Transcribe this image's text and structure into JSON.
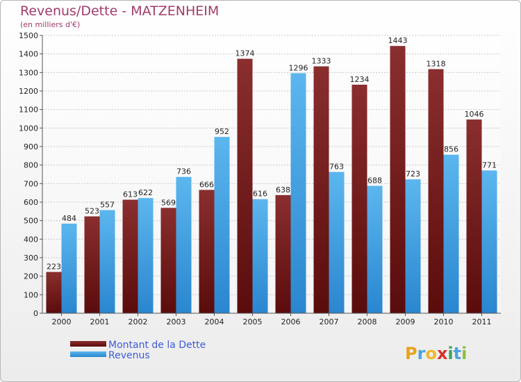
{
  "chart_data": {
    "type": "bar",
    "title": "Revenus/Dette - MATZENHEIM",
    "subtitle": "(en milliers d'€)",
    "categories": [
      "2000",
      "2001",
      "2002",
      "2003",
      "2004",
      "2005",
      "2006",
      "2007",
      "2008",
      "2009",
      "2010",
      "2011"
    ],
    "series": [
      {
        "name": "Montant de la Dette",
        "color": "#7a1c1c",
        "values": [
          223,
          523,
          613,
          569,
          666,
          1374,
          638,
          1333,
          1234,
          1443,
          1318,
          1046
        ]
      },
      {
        "name": "Revenus",
        "color": "#4fa8e6",
        "values": [
          484,
          557,
          622,
          736,
          952,
          616,
          1296,
          763,
          688,
          723,
          856,
          771
        ]
      }
    ],
    "ylim": [
      0,
      1500
    ],
    "yticks": [
      0,
      100,
      200,
      300,
      400,
      500,
      600,
      700,
      800,
      900,
      1000,
      1100,
      1200,
      1300,
      1400,
      1500
    ],
    "grid": true,
    "legend_position": "bottom-left"
  },
  "brand": {
    "logo_letters": [
      {
        "ch": "P",
        "color": "#e8a21c"
      },
      {
        "ch": "r",
        "color": "#4aa3df"
      },
      {
        "ch": "o",
        "color": "#f0b82a"
      },
      {
        "ch": "x",
        "color": "#d9302a"
      },
      {
        "ch": "i",
        "color": "#3aa35a"
      },
      {
        "ch": "t",
        "color": "#4aa3df"
      },
      {
        "ch": "i",
        "color": "#8bbf3a"
      }
    ]
  }
}
